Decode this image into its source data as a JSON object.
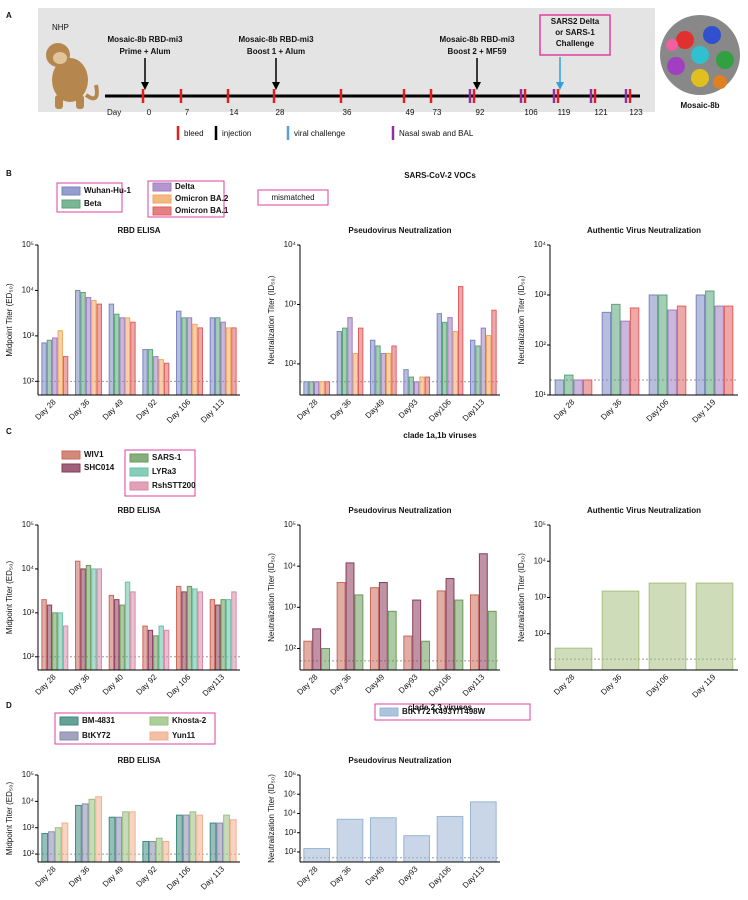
{
  "panel_labels": [
    "A",
    "B",
    "C",
    "D"
  ],
  "timeline": {
    "subject": "NHP",
    "day_label": "Day",
    "days": [
      0,
      7,
      14,
      28,
      36,
      49,
      73,
      92,
      106,
      119,
      121,
      123
    ],
    "events": [
      {
        "label": "Mosaic-8b RBD-mi3",
        "sub": "Prime + Alum"
      },
      {
        "label": "Mosaic-8b RBD-mi3",
        "sub": "Boost 1 + Alum"
      },
      {
        "label": "Mosaic-8b RBD-mi3",
        "sub": "Boost 2 + MF59"
      }
    ],
    "challenge": [
      "SARS2 Delta",
      "or SARS-1",
      "Challenge"
    ],
    "legend": [
      "bleed",
      "injection",
      "viral challenge",
      "Nasal swab and BAL"
    ],
    "particle_label": "Mosaic-8b"
  },
  "sections": [
    {
      "title": "SARS-CoV-2 VOCs",
      "note": "mismatched"
    },
    {
      "title": "clade 1a,1b viruses"
    },
    {
      "title": "clade 2,3 viruses"
    }
  ],
  "chart_data": [
    {
      "type": "bar",
      "title": "RBD ELISA",
      "ylabel": "Midpoint Titer (ED₅₀)",
      "log": true,
      "categories": [
        "Day 28",
        "Day 36",
        "Day 49",
        "Day 92",
        "Day 106",
        "Day 113"
      ],
      "series": [
        {
          "name": "Wuhan-Hu-1",
          "color": "#7b86c0",
          "values": [
            700,
            10000,
            5000,
            500,
            3500,
            2500
          ]
        },
        {
          "name": "Beta",
          "color": "#5aa47a",
          "values": [
            800,
            9000,
            3000,
            500,
            2500,
            2500
          ]
        },
        {
          "name": "Delta",
          "color": "#a07cc0",
          "values": [
            900,
            7000,
            2500,
            350,
            2500,
            2000
          ]
        },
        {
          "name": "Omicron BA.2",
          "color": "#f0a860",
          "values": [
            1300,
            6000,
            2500,
            300,
            1800,
            1500
          ]
        },
        {
          "name": "Omicron BA.1",
          "color": "#e06060",
          "values": [
            350,
            5000,
            2000,
            250,
            1500,
            1500
          ]
        }
      ],
      "ylim": [
        50,
        100000
      ],
      "yticks": [
        {
          "value": 100,
          "label": "10²"
        },
        {
          "value": 1000,
          "label": "10³"
        },
        {
          "value": 10000,
          "label": "10⁴"
        },
        {
          "value": 100000,
          "label": "10⁵"
        }
      ],
      "reference_line": 100
    },
    {
      "type": "bar",
      "title": "Pseudovirus Neutralization",
      "ylabel": "Neutralization Titer (ID₅₀)",
      "log": true,
      "categories": [
        "Day 28",
        "Day 36",
        "Day49",
        "Day93",
        "Day106",
        "Day113"
      ],
      "series": [
        {
          "color": "#7b86c0",
          "values": [
            50,
            350,
            250,
            80,
            700,
            250
          ]
        },
        {
          "color": "#5aa47a",
          "values": [
            50,
            400,
            200,
            60,
            500,
            200
          ]
        },
        {
          "color": "#a07cc0",
          "values": [
            50,
            600,
            150,
            50,
            600,
            400
          ]
        },
        {
          "color": "#f0a860",
          "values": [
            50,
            150,
            150,
            60,
            350,
            300
          ]
        },
        {
          "color": "#e06060",
          "values": [
            50,
            400,
            200,
            60,
            2000,
            800
          ]
        }
      ],
      "ylim": [
        30,
        10000
      ],
      "yticks": [
        {
          "value": 100,
          "label": "10²"
        },
        {
          "value": 1000,
          "label": "10³"
        },
        {
          "value": 10000,
          "label": "10⁴"
        }
      ],
      "reference_line": 50
    },
    {
      "type": "bar",
      "title": "Authentic Virus Neutralization",
      "ylabel": "Neutralization Titer (ID₅₀)",
      "log": true,
      "categories": [
        "Day 28",
        "Day 36",
        "Day106",
        "Day 119"
      ],
      "series": [
        {
          "color": "#7b86c0",
          "values": [
            20,
            450,
            1000,
            1000
          ]
        },
        {
          "color": "#5aa47a",
          "values": [
            25,
            650,
            1000,
            1200
          ]
        },
        {
          "color": "#a07cc0",
          "values": [
            20,
            300,
            500,
            600
          ]
        },
        {
          "color": "#e06060",
          "values": [
            20,
            550,
            600,
            600
          ]
        }
      ],
      "ylim": [
        10,
        10000
      ],
      "yticks": [
        {
          "value": 10,
          "label": "10¹"
        },
        {
          "value": 100,
          "label": "10²"
        },
        {
          "value": 1000,
          "label": "10³"
        },
        {
          "value": 10000,
          "label": "10⁴"
        }
      ],
      "reference_line": 20
    },
    {
      "type": "bar",
      "title": "RBD ELISA",
      "ylabel": "Midpoint Titer (ED₅₀)",
      "log": true,
      "categories": [
        "Day 28",
        "Day 36",
        "Day 40",
        "Day 92",
        "Day 106",
        "Day113"
      ],
      "series": [
        {
          "name": "WIV1",
          "color": "#c96a5a",
          "values": [
            2000,
            15000,
            2500,
            500,
            4000,
            2000
          ]
        },
        {
          "name": "SHC014",
          "color": "#8a3a5a",
          "values": [
            1500,
            10000,
            2000,
            400,
            3000,
            1500
          ]
        },
        {
          "name": "SARS-1",
          "color": "#6a9a5a",
          "values": [
            1000,
            12000,
            1500,
            300,
            4000,
            2000
          ]
        },
        {
          "name": "LYRa3",
          "color": "#6ac0a8",
          "values": [
            1000,
            10000,
            5000,
            500,
            3500,
            2000
          ]
        },
        {
          "name": "RshSTT200",
          "color": "#d88aa8",
          "values": [
            500,
            10000,
            3000,
            400,
            3000,
            3000
          ]
        }
      ],
      "ylim": [
        50,
        100000
      ],
      "yticks": [
        {
          "value": 100,
          "label": "10²"
        },
        {
          "value": 1000,
          "label": "10³"
        },
        {
          "value": 10000,
          "label": "10⁴"
        },
        {
          "value": 100000,
          "label": "10⁵"
        }
      ],
      "reference_line": 100
    },
    {
      "type": "bar",
      "title": "Pseudovirus Neutralization",
      "ylabel": "Neutralization Titer (ID₅₀)",
      "log": true,
      "categories": [
        "Day 28",
        "Day 36",
        "Day49",
        "Day93",
        "Day106",
        "Day113"
      ],
      "series": [
        {
          "color": "#c96a5a",
          "values": [
            150,
            4000,
            3000,
            200,
            2500,
            2000
          ]
        },
        {
          "color": "#8a3a5a",
          "values": [
            300,
            12000,
            4000,
            1500,
            5000,
            20000
          ]
        },
        {
          "color": "#6a9a5a",
          "values": [
            100,
            2000,
            800,
            150,
            1500,
            800
          ]
        }
      ],
      "ylim": [
        30,
        100000
      ],
      "yticks": [
        {
          "value": 100,
          "label": "10²"
        },
        {
          "value": 1000,
          "label": "10³"
        },
        {
          "value": 10000,
          "label": "10⁴"
        },
        {
          "value": 100000,
          "label": "10⁵"
        }
      ],
      "reference_line": 50
    },
    {
      "type": "bar",
      "title": "Authentic Virus Neutralization",
      "ylabel": "Neutralization Titer (ID₅₀)",
      "log": true,
      "categories": [
        "Day 28",
        "Day 36",
        "Day106",
        "Day 119"
      ],
      "series": [
        {
          "color": "#a8c080",
          "values": [
            40,
            1500,
            2500,
            2500
          ]
        }
      ],
      "ylim": [
        10,
        100000
      ],
      "yticks": [
        {
          "value": 100,
          "label": "10²"
        },
        {
          "value": 1000,
          "label": "10³"
        },
        {
          "value": 10000,
          "label": "10⁴"
        },
        {
          "value": 100000,
          "label": "10⁵"
        }
      ],
      "reference_line": 20
    },
    {
      "type": "bar",
      "title": "RBD ELISA",
      "ylabel": "Midpoint Titer (ED₅₀)",
      "log": true,
      "categories": [
        "Day 28",
        "Day 36",
        "Day 49",
        "Day 92",
        "Day 106",
        "Day 113"
      ],
      "series": [
        {
          "name": "BM-4831",
          "color": "#3e8a7e",
          "values": [
            600,
            7000,
            2500,
            300,
            3000,
            1500
          ]
        },
        {
          "name": "BtKY72",
          "color": "#8a8ab0",
          "values": [
            700,
            8000,
            2500,
            300,
            3000,
            1500
          ]
        },
        {
          "name": "Khosta-2",
          "color": "#98c080",
          "values": [
            1000,
            12000,
            4000,
            400,
            4000,
            3000
          ]
        },
        {
          "name": "Yun11",
          "color": "#f0b090",
          "values": [
            1500,
            15000,
            4000,
            300,
            3000,
            2000
          ]
        }
      ],
      "ylim": [
        50,
        100000
      ],
      "yticks": [
        {
          "value": 100,
          "label": "10²"
        },
        {
          "value": 1000,
          "label": "10³"
        },
        {
          "value": 10000,
          "label": "10⁴"
        },
        {
          "value": 100000,
          "label": "10⁵"
        }
      ],
      "reference_line": 100
    },
    {
      "type": "bar",
      "title": "Pseudovirus Neutralization",
      "ylabel": "Neutralization Titer (ID₅₀)",
      "log": true,
      "categories": [
        "Day 28",
        "Day 36",
        "Day49",
        "Day93",
        "Day106",
        "Day113"
      ],
      "series": [
        {
          "name": "BtKY72 K493Y/T498W",
          "color": "#9ab4d4",
          "values": [
            150,
            5000,
            6000,
            700,
            7000,
            40000
          ]
        }
      ],
      "ylim": [
        30,
        1000000
      ],
      "yticks": [
        {
          "value": 100,
          "label": "10²"
        },
        {
          "value": 1000,
          "label": "10³"
        },
        {
          "value": 10000,
          "label": "10⁴"
        },
        {
          "value": 100000,
          "label": "10⁵"
        },
        {
          "value": 1000000,
          "label": "10⁶"
        }
      ],
      "reference_line": 50
    }
  ]
}
